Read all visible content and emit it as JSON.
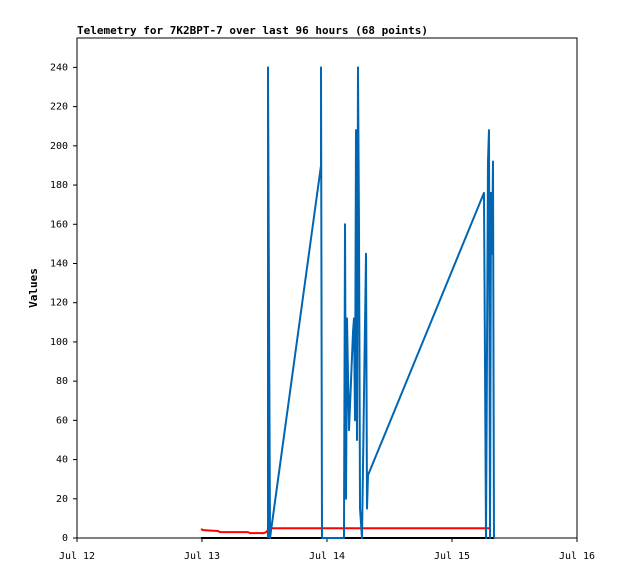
{
  "chart_data": {
    "type": "line",
    "title": "Telemetry for 7K2BPT-7 over last 96 hours (68 points)",
    "ylabel": "Values",
    "xlim": [
      0,
      96
    ],
    "xticks": [
      {
        "value": 0,
        "label": "Jul 12"
      },
      {
        "value": 24,
        "label": "Jul 13"
      },
      {
        "value": 48,
        "label": "Jul 14"
      },
      {
        "value": 72,
        "label": "Jul 15"
      },
      {
        "value": 96,
        "label": "Jul 16"
      }
    ],
    "ylim": [
      0,
      255
    ],
    "yticks": [
      0,
      20,
      40,
      60,
      80,
      100,
      120,
      140,
      160,
      180,
      200,
      220,
      240
    ],
    "grid": false,
    "series": [
      {
        "color": "#000000",
        "x": [
          23.81,
          80.06
        ],
        "values": [
          0,
          0
        ]
      },
      {
        "color": "#ff0000",
        "x": [
          23.81,
          24.19,
          27.07,
          27.46,
          32.83,
          33.22,
          35.9,
          36.29,
          37.06,
          79.3
        ],
        "values": [
          4.6,
          4,
          3.6,
          3,
          3,
          2.5,
          2.5,
          3,
          5,
          5
        ]
      },
      {
        "color": "#0066b3",
        "x": [
          36.67,
          36.67,
          37.06,
          46.85,
          46.85,
          47.04,
          51.26,
          51.46,
          51.65,
          51.84,
          52.22,
          52.61,
          52.99,
          53.18,
          53.38,
          53.57,
          53.76,
          53.95,
          54.14,
          54.34,
          54.72,
          55.1,
          55.49,
          55.68,
          55.87,
          78.14,
          78.34,
          78.53,
          78.72,
          78.91,
          79.1,
          79.3,
          79.49,
          79.68,
          79.87,
          80.06
        ],
        "values": [
          0,
          240,
          0,
          190,
          240,
          0,
          0,
          160,
          20,
          112,
          55,
          80,
          105,
          112,
          60,
          208,
          50,
          240,
          160,
          15,
          0,
          72,
          145,
          15,
          32,
          176,
          88,
          0,
          96,
          192,
          208,
          0,
          176,
          145,
          192,
          0
        ]
      }
    ]
  }
}
